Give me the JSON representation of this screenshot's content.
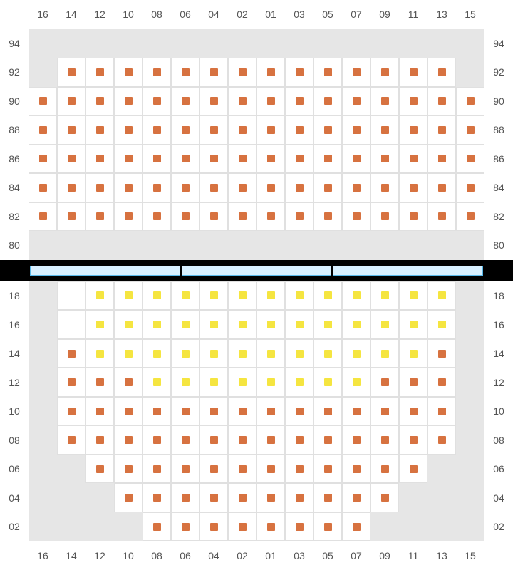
{
  "colors": {
    "orange": "#d77240",
    "yellow": "#f5e540",
    "empty": "#e6e6e6",
    "grid_line": "#e0e0e0",
    "label_text": "#555555",
    "background": "#000000",
    "bar_fill": "#d8f0ff",
    "bar_border": "#59b8e8"
  },
  "layout": {
    "cols": 18,
    "cell_size": 40,
    "seat_size": 11
  },
  "col_labels": [
    "16",
    "14",
    "12",
    "10",
    "08",
    "06",
    "04",
    "02",
    "01",
    "03",
    "05",
    "07",
    "09",
    "11",
    "13",
    "15"
  ],
  "upper": {
    "row_labels": [
      "94",
      "92",
      "90",
      "88",
      "86",
      "84",
      "82",
      "80"
    ],
    "row_count": 8,
    "seats": {
      "94": {
        "empty": [
          0,
          1,
          2,
          3,
          4,
          5,
          6,
          7,
          8,
          9,
          10,
          11,
          12,
          13,
          14,
          15
        ]
      },
      "92": {
        "empty": [
          0,
          15
        ],
        "orange": [
          1,
          2,
          3,
          4,
          5,
          6,
          7,
          8,
          9,
          10,
          11,
          12,
          13,
          14
        ]
      },
      "90": {
        "orange": [
          0,
          1,
          2,
          3,
          4,
          5,
          6,
          7,
          8,
          9,
          10,
          11,
          12,
          13,
          14,
          15
        ]
      },
      "88": {
        "orange": [
          0,
          1,
          2,
          3,
          4,
          5,
          6,
          7,
          8,
          9,
          10,
          11,
          12,
          13,
          14,
          15
        ]
      },
      "86": {
        "orange": [
          0,
          1,
          2,
          3,
          4,
          5,
          6,
          7,
          8,
          9,
          10,
          11,
          12,
          13,
          14,
          15
        ]
      },
      "84": {
        "orange": [
          0,
          1,
          2,
          3,
          4,
          5,
          6,
          7,
          8,
          9,
          10,
          11,
          12,
          13,
          14,
          15
        ]
      },
      "82": {
        "orange": [
          0,
          1,
          2,
          3,
          4,
          5,
          6,
          7,
          8,
          9,
          10,
          11,
          12,
          13,
          14,
          15
        ]
      },
      "80": {
        "empty": [
          0,
          1,
          2,
          3,
          4,
          5,
          6,
          7,
          8,
          9,
          10,
          11,
          12,
          13,
          14,
          15
        ]
      }
    }
  },
  "lower": {
    "row_labels": [
      "18",
      "16",
      "14",
      "12",
      "10",
      "08",
      "06",
      "04",
      "02"
    ],
    "row_count": 9,
    "seats": {
      "18": {
        "empty": [
          0,
          15
        ],
        "yellow": [
          2,
          3,
          4,
          5,
          6,
          7,
          8,
          9,
          10,
          11,
          12,
          13,
          14
        ],
        "none": [
          1
        ]
      },
      "16": {
        "empty": [
          0,
          15
        ],
        "yellow": [
          2,
          3,
          4,
          5,
          6,
          7,
          8,
          9,
          10,
          11,
          12,
          13,
          14
        ],
        "none": [
          1
        ]
      },
      "14": {
        "empty": [
          0,
          15
        ],
        "orange": [
          1,
          14
        ],
        "yellow": [
          2,
          3,
          4,
          5,
          6,
          7,
          8,
          9,
          10,
          11,
          12,
          13
        ]
      },
      "12": {
        "empty": [
          0,
          15
        ],
        "orange": [
          1,
          2,
          3,
          12,
          13,
          14
        ],
        "yellow": [
          4,
          5,
          6,
          7,
          8,
          9,
          10,
          11
        ]
      },
      "10": {
        "empty": [
          0,
          15
        ],
        "orange": [
          1,
          2,
          3,
          4,
          5,
          6,
          7,
          8,
          9,
          10,
          11,
          12,
          13,
          14
        ]
      },
      "08": {
        "empty": [
          0,
          15
        ],
        "orange": [
          1,
          2,
          3,
          4,
          5,
          6,
          7,
          8,
          9,
          10,
          11,
          12,
          13,
          14
        ]
      },
      "06": {
        "empty": [
          0,
          1,
          14,
          15
        ],
        "orange": [
          2,
          3,
          4,
          5,
          6,
          7,
          8,
          9,
          10,
          11,
          12,
          13
        ]
      },
      "04": {
        "empty": [
          0,
          1,
          2,
          13,
          14,
          15
        ],
        "orange": [
          3,
          4,
          5,
          6,
          7,
          8,
          9,
          10,
          11,
          12
        ]
      },
      "02": {
        "empty": [
          0,
          1,
          2,
          3,
          12,
          13,
          14,
          15
        ],
        "orange": [
          4,
          5,
          6,
          7,
          8,
          9,
          10,
          11
        ]
      }
    }
  }
}
